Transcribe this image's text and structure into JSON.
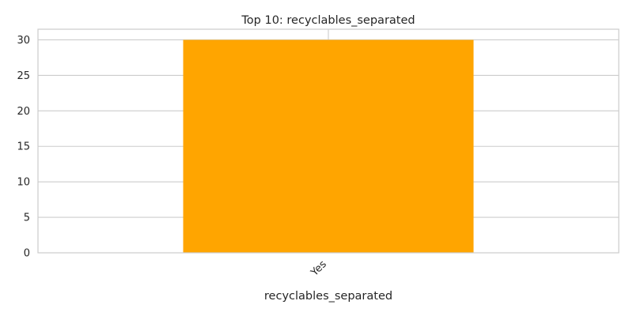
{
  "chart_data": {
    "type": "bar",
    "title": "Top 10: recyclables_separated",
    "xlabel": "recyclables_separated",
    "ylabel": "",
    "categories": [
      "Yes"
    ],
    "values": [
      30
    ],
    "ylim": [
      0,
      31.5
    ],
    "yticks": [
      0,
      5,
      10,
      15,
      20,
      25,
      30
    ],
    "grid": true,
    "legend": "none",
    "bar_color": "#ffa500",
    "grid_color": "#cccccc"
  }
}
